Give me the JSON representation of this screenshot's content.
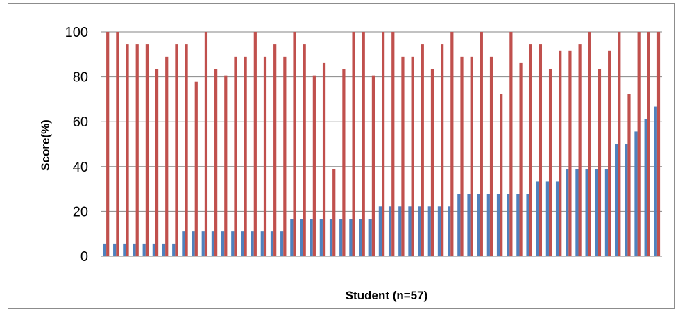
{
  "chart_data": {
    "type": "bar",
    "title": "",
    "xlabel": "Student (n=57)",
    "ylabel": "Score(%)",
    "ylim": [
      0,
      100
    ],
    "yticks": [
      0,
      20,
      40,
      60,
      80,
      100
    ],
    "grid": "horizontal",
    "legend": "none",
    "series": [
      {
        "color": "#4f81bd",
        "values": [
          5.6,
          5.6,
          5.6,
          5.6,
          5.6,
          5.6,
          5.6,
          5.6,
          11.1,
          11.1,
          11.1,
          11.1,
          11.1,
          11.1,
          11.1,
          11.1,
          11.1,
          11.1,
          11.1,
          16.7,
          16.7,
          16.7,
          16.7,
          16.7,
          16.7,
          16.7,
          16.7,
          16.7,
          22.2,
          22.2,
          22.2,
          22.2,
          22.2,
          22.2,
          22.2,
          22.2,
          27.8,
          27.8,
          27.8,
          27.8,
          27.8,
          27.8,
          27.8,
          27.8,
          33.3,
          33.3,
          33.3,
          38.9,
          38.9,
          38.9,
          38.9,
          38.9,
          50,
          50,
          55.6,
          61.1,
          66.7
        ]
      },
      {
        "color": "#c0504d",
        "values": [
          100,
          100,
          94.4,
          94.4,
          94.4,
          83.3,
          88.9,
          94.4,
          94.4,
          77.8,
          100,
          83.3,
          80.6,
          88.9,
          88.9,
          100,
          88.9,
          94.4,
          88.9,
          100,
          94.4,
          80.6,
          86.1,
          38.9,
          83.3,
          100,
          100,
          80.6,
          100,
          100,
          88.9,
          88.9,
          94.4,
          83.3,
          94.4,
          100,
          88.9,
          88.9,
          100,
          88.9,
          72.2,
          100,
          86.1,
          94.4,
          94.4,
          83.3,
          91.7,
          91.7,
          94.4,
          100,
          83.3,
          91.7,
          100,
          72.2,
          100,
          100,
          100
        ]
      }
    ]
  }
}
